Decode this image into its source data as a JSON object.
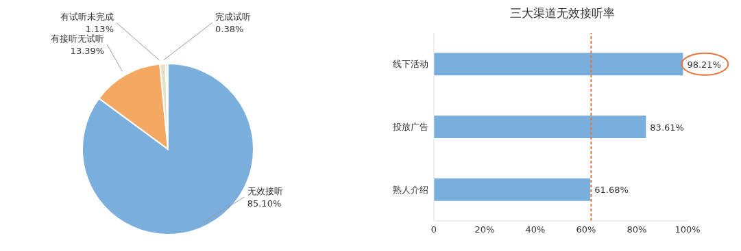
{
  "chart_data": [
    {
      "type": "pie",
      "categories": [
        "无效接听",
        "有接听无试听",
        "有试听未完成",
        "完成试听"
      ],
      "values": [
        85.1,
        13.39,
        1.13,
        0.38
      ],
      "colors": [
        "#7aaedc",
        "#f5a862",
        "#e8e0c8",
        "#d9d9d9"
      ],
      "value_labels": [
        "85.10%",
        "13.39%",
        "1.13%",
        "0.38%"
      ],
      "legend": false
    },
    {
      "type": "bar",
      "title": "三大渠道无效接听率",
      "orientation": "horizontal",
      "categories": [
        "线下活动",
        "投放广告",
        "熟人介绍"
      ],
      "values": [
        98.21,
        83.61,
        61.68
      ],
      "color": "#7aaedc",
      "value_labels": [
        "98.21%",
        "83.61%",
        "61.68%"
      ],
      "xlim": [
        0,
        100
      ],
      "xticks": [
        0,
        {
          "value": 20,
          "label": "20%"
        },
        {
          "value": 40,
          "label": "40%"
        },
        {
          "value": 60,
          "label": "60%"
        },
        {
          "value": 80,
          "label": "80%"
        },
        {
          "value": 100,
          "label": "100%"
        }
      ],
      "ref_lines": [
        {
          "axis": "x",
          "value": 62,
          "color": "#e8743b",
          "line_style": "dashed"
        }
      ],
      "grid": false,
      "legend": false
    }
  ]
}
